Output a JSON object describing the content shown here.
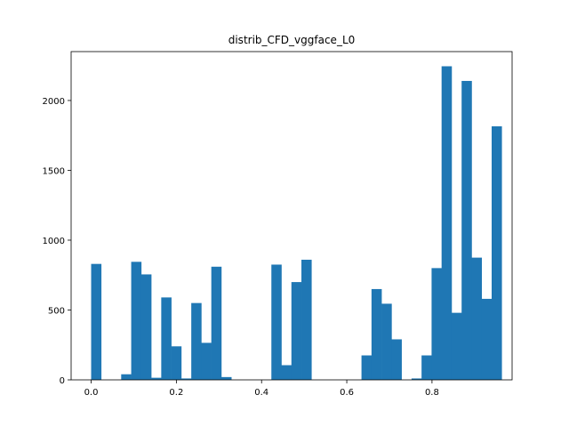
{
  "chart_data": {
    "type": "bar",
    "title": "distrib_CFD_vggface_L0",
    "xlabel": "",
    "ylabel": "",
    "xlim": [
      -0.047,
      0.988
    ],
    "ylim": [
      0,
      2350
    ],
    "x_ticks": [
      0.0,
      0.2,
      0.4,
      0.6,
      0.8
    ],
    "x_tick_labels": [
      "0.0",
      "0.2",
      "0.4",
      "0.6",
      "0.8"
    ],
    "y_ticks": [
      0,
      500,
      1000,
      1500,
      2000
    ],
    "y_tick_labels": [
      "0",
      "500",
      "1000",
      "1500",
      "2000"
    ],
    "grid": false,
    "bar_color": "#1f77b4",
    "bin_start": 0.0,
    "bin_width": 0.0235,
    "values": [
      830,
      0,
      0,
      40,
      845,
      755,
      15,
      590,
      240,
      10,
      550,
      265,
      810,
      20,
      0,
      0,
      0,
      0,
      825,
      105,
      700,
      860,
      0,
      0,
      0,
      0,
      0,
      175,
      650,
      545,
      290,
      0,
      10,
      175,
      800,
      2245,
      480,
      2140,
      875,
      580,
      1815
    ]
  }
}
